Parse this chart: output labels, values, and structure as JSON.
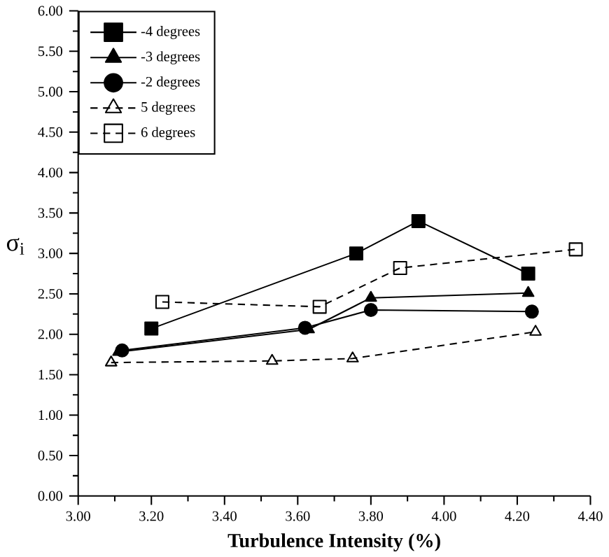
{
  "chart_data": {
    "type": "line",
    "xlabel": "Turbulence Intensity (%)",
    "ylabel": "σ$_{i}$",
    "xlim": [
      3.0,
      4.4
    ],
    "ylim": [
      0,
      6
    ],
    "xticks": [
      {
        "value": 3.0,
        "label": "3.00"
      },
      {
        "value": 3.2,
        "label": "3.20"
      },
      {
        "value": 3.4,
        "label": "3.40"
      },
      {
        "value": 3.6,
        "label": "3.60"
      },
      {
        "value": 3.8,
        "label": "3.80"
      },
      {
        "value": 4.0,
        "label": "4.00"
      },
      {
        "value": 4.2,
        "label": "4.20"
      },
      {
        "value": 4.4,
        "label": "4.40"
      }
    ],
    "yticks": [
      {
        "value": 0,
        "label": "0.00"
      },
      {
        "value": 0.5,
        "label": "0.50"
      },
      {
        "value": 1,
        "label": "1.00"
      },
      {
        "value": 1.5,
        "label": "1.50"
      },
      {
        "value": 2,
        "label": "2.00"
      },
      {
        "value": 2.5,
        "label": "2.50"
      },
      {
        "value": 3,
        "label": "3.00"
      },
      {
        "value": 3.5,
        "label": "3.50"
      },
      {
        "value": 4,
        "label": "4.00"
      },
      {
        "value": 4.5,
        "label": "4.50"
      },
      {
        "value": 5,
        "label": "5.00"
      },
      {
        "value": 5.5,
        "label": "5.50"
      },
      {
        "value": 6,
        "label": "6.00"
      }
    ],
    "legend": "top left",
    "grid": false,
    "series": [
      {
        "name": "-4 degrees",
        "color": "#000000",
        "marker": "square",
        "line_style": "solid",
        "x": [
          3.2,
          3.76,
          3.93,
          4.23
        ],
        "values": [
          2.07,
          3.0,
          3.4,
          2.75
        ]
      },
      {
        "name": "-3 degrees",
        "color": "#000000",
        "marker": "triangle",
        "line_style": "solid",
        "x": [
          3.11,
          3.63,
          3.8,
          4.23
        ],
        "values": [
          1.78,
          2.06,
          2.45,
          2.51
        ]
      },
      {
        "name": "-2 degrees",
        "color": "#000000",
        "marker": "circle",
        "line_style": "solid",
        "x": [
          3.12,
          3.62,
          3.8,
          4.24
        ],
        "values": [
          1.8,
          2.08,
          2.3,
          2.28
        ]
      },
      {
        "name": "5 degrees",
        "color": "#000000",
        "marker": "triangle",
        "line_style": "dashed",
        "x": [
          3.09,
          3.53,
          3.75,
          4.25
        ],
        "values": [
          1.65,
          1.67,
          1.7,
          2.03
        ]
      },
      {
        "name": "6 degrees",
        "color": "#000000",
        "marker": "square",
        "line_style": "dashed",
        "x": [
          3.23,
          3.66,
          3.88,
          4.36
        ],
        "values": [
          2.4,
          2.34,
          2.82,
          3.05
        ]
      }
    ]
  }
}
